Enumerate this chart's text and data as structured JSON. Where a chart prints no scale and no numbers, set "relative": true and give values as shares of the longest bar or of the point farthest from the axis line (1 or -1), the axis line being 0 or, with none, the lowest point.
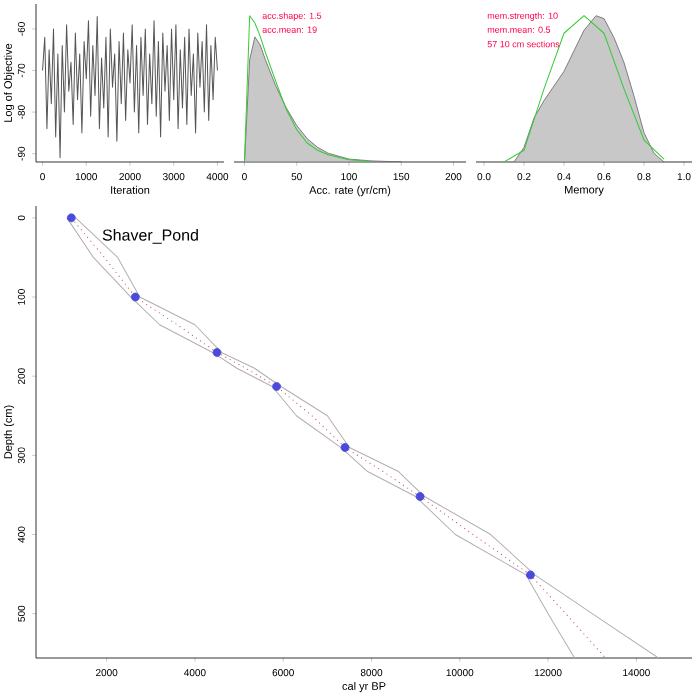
{
  "chart_data": [
    {
      "type": "line",
      "xlabel": "Iteration",
      "ylabel": "Log of Objective",
      "xlim": [
        -150,
        4150
      ],
      "ylim": [
        -92,
        -54
      ],
      "xticks": [
        0,
        1000,
        2000,
        3000,
        4000
      ],
      "yticks": [
        -90,
        -80,
        -70,
        -60
      ],
      "series": [
        {
          "color": "#555555",
          "x": [
            0,
            50,
            100,
            150,
            200,
            250,
            300,
            350,
            400,
            450,
            500,
            550,
            600,
            650,
            700,
            750,
            800,
            850,
            900,
            950,
            1000,
            1050,
            1100,
            1150,
            1200,
            1250,
            1300,
            1350,
            1400,
            1450,
            1500,
            1550,
            1600,
            1650,
            1700,
            1750,
            1800,
            1850,
            1900,
            1950,
            2000,
            2050,
            2100,
            2150,
            2200,
            2250,
            2300,
            2350,
            2400,
            2450,
            2500,
            2550,
            2600,
            2650,
            2700,
            2750,
            2800,
            2850,
            2900,
            2950,
            3000,
            3050,
            3100,
            3150,
            3200,
            3250,
            3300,
            3350,
            3400,
            3450,
            3500,
            3550,
            3600,
            3650,
            3700,
            3750,
            3800,
            3850,
            3900,
            3950,
            4000
          ],
          "values": [
            -70,
            -62,
            -84,
            -65,
            -78,
            -60,
            -86,
            -66,
            -91,
            -64,
            -80,
            -59,
            -75,
            -68,
            -83,
            -61,
            -77,
            -66,
            -85,
            -63,
            -72,
            -58,
            -81,
            -64,
            -76,
            -57,
            -84,
            -67,
            -79,
            -62,
            -86,
            -60,
            -74,
            -66,
            -87,
            -63,
            -78,
            -61,
            -82,
            -65,
            -73,
            -59,
            -80,
            -64,
            -85,
            -62,
            -76,
            -60,
            -83,
            -66,
            -78,
            -58,
            -81,
            -63,
            -86,
            -61,
            -75,
            -64,
            -82,
            -60,
            -77,
            -59,
            -84,
            -65,
            -79,
            -62,
            -83,
            -60,
            -76,
            -66,
            -85,
            -61,
            -74,
            -63,
            -80,
            -59,
            -82,
            -64,
            -77,
            -62,
            -70
          ]
        }
      ]
    },
    {
      "type": "area",
      "relative": true,
      "xlabel": "Acc. rate (yr/cm)",
      "xlim": [
        -10,
        212
      ],
      "xticks": [
        0,
        50,
        100,
        150,
        200
      ],
      "annotations": [
        "acc.shape: 1.5",
        "acc.mean: 19"
      ],
      "series": [
        {
          "color": "#c8c8c8",
          "x": [
            0,
            5,
            10,
            15,
            20,
            30,
            40,
            50,
            60,
            70,
            80,
            100,
            120,
            150
          ],
          "values": [
            0,
            0.7,
            0.855,
            0.8,
            0.7,
            0.52,
            0.37,
            0.25,
            0.16,
            0.1,
            0.06,
            0.02,
            0.008,
            0
          ]
        },
        {
          "type": "line",
          "color": "#33cc33",
          "x": [
            0,
            5,
            10,
            15,
            20,
            30,
            40,
            50,
            60,
            70,
            80,
            100,
            120
          ],
          "values": [
            0,
            1,
            0.95,
            0.86,
            0.75,
            0.55,
            0.36,
            0.22,
            0.13,
            0.08,
            0.05,
            0.015,
            0.005
          ]
        }
      ]
    },
    {
      "type": "area",
      "relative": true,
      "xlabel": "Memory",
      "xlim": [
        -0.04,
        1.04
      ],
      "xticks": [
        {
          "value": 0,
          "label": "0.0"
        },
        0.2,
        0.4,
        0.6,
        0.8,
        {
          "value": 1,
          "label": "1.0"
        }
      ],
      "annotations": [
        "mem.strength: 10",
        "mem.mean: 0.5",
        "57 10 cm sections"
      ],
      "series": [
        {
          "color": "#c8c8c8",
          "x": [
            0.15,
            0.2,
            0.25,
            0.3,
            0.4,
            0.5,
            0.56,
            0.6,
            0.65,
            0.7,
            0.75,
            0.8,
            0.85,
            0.9
          ],
          "values": [
            0,
            0.1,
            0.3,
            0.42,
            0.62,
            0.9,
            1.0,
            0.98,
            0.85,
            0.68,
            0.45,
            0.2,
            0.06,
            0
          ]
        },
        {
          "type": "line",
          "color": "#33cc33",
          "x": [
            0.1,
            0.2,
            0.3,
            0.4,
            0.5,
            0.6,
            0.7,
            0.8,
            0.9
          ],
          "values": [
            0,
            0.08,
            0.5,
            0.88,
            1.0,
            0.88,
            0.5,
            0.15,
            0.02
          ]
        }
      ]
    },
    {
      "type": "line",
      "xlabel": "cal yr BP",
      "ylabel": "Depth (cm)",
      "xlim": [
        400,
        15260
      ],
      "ylim": [
        556,
        -15
      ],
      "xticks": [
        2000,
        4000,
        6000,
        8000,
        10000,
        12000,
        14000
      ],
      "yticks": [
        0,
        100,
        200,
        300,
        400,
        500
      ],
      "annotations": [
        "Shaver_Pond"
      ],
      "series": [
        {
          "color": "#b0b0b0",
          "x": [
            1100,
            1700,
            2550,
            3200,
            4400,
            4950,
            5750,
            6300,
            7300,
            7900,
            9000,
            9900,
            11500,
            12000,
            12600
          ],
          "values": [
            0,
            50,
            100,
            135,
            170,
            190,
            213,
            250,
            290,
            320,
            352,
            400,
            451,
            500,
            556
          ]
        },
        {
          "color": "#b0b0b0",
          "x": [
            1300,
            2250,
            2750,
            4000,
            4600,
            5350,
            5950,
            7000,
            7500,
            8600,
            9200,
            10700,
            11700,
            13000,
            14500
          ],
          "values": [
            0,
            50,
            100,
            135,
            170,
            190,
            213,
            250,
            290,
            320,
            352,
            400,
            451,
            500,
            556
          ]
        },
        {
          "color": "#cc4444",
          "line_style": "dotted",
          "x": [
            1200,
            1950,
            2650,
            3600,
            4500,
            5150,
            5850,
            6650,
            7400,
            8250,
            9100,
            10300,
            11600,
            12400,
            13300
          ],
          "values": [
            0,
            50,
            100,
            135,
            170,
            190,
            213,
            250,
            290,
            320,
            352,
            400,
            451,
            500,
            556
          ]
        },
        {
          "type": "scatter",
          "color": "#4a4adc",
          "x": [
            1200,
            2650,
            4500,
            5850,
            7400,
            9100,
            11600
          ],
          "values": [
            0,
            100,
            170,
            213,
            290,
            352,
            451
          ]
        }
      ]
    }
  ]
}
